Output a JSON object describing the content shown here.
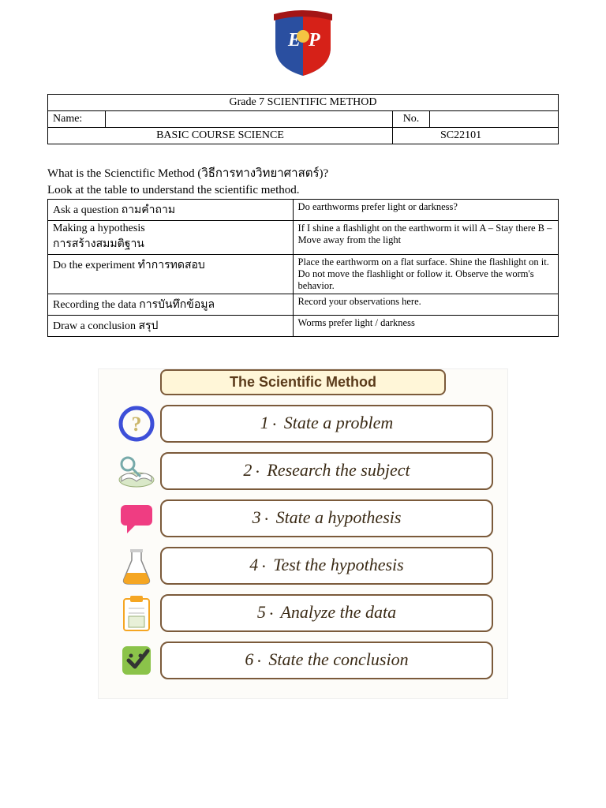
{
  "header": {
    "title": "Grade 7 SCIENTIFIC METHOD",
    "name_label": "Name:",
    "no_label": "No.",
    "course": "BASIC  COURSE    SCIENCE",
    "code": "SC22101"
  },
  "intro": {
    "line1": "What is the Scienctific Method (วิธีการทางวิทยาศาสตร์)?",
    "line2": "Look at the table to understand the scientific method."
  },
  "method_rows": [
    {
      "left": "Ask a question  ถามคำถาม",
      "right": "Do earthworms prefer light or darkness?"
    },
    {
      "left": "Making a hypothesis\nการสร้างสมมติฐาน",
      "right": "If I shine a ﬂashlight on the earthworm it will A – Stay there B – Move away from the light"
    },
    {
      "left": "Do the experiment ทำการทดสอบ",
      "right": "Place the earthworm on a flat surface. Shine the flashlight on it. Do not move the flashlight or follow it. Observe the worm's behavior."
    },
    {
      "left": "Recording the data การบันทึกข้อมูล",
      "right": "Record your observations here."
    },
    {
      "left": "Draw a conclusion  สรุป",
      "right": "Worms prefer light / darkness"
    }
  ],
  "infographic": {
    "title": "The Scientific Method",
    "steps": [
      {
        "num": "1",
        "text": "State a problem",
        "icon": "question"
      },
      {
        "num": "2",
        "text": "Research the subject",
        "icon": "book"
      },
      {
        "num": "3",
        "text": "State a hypothesis",
        "icon": "speech"
      },
      {
        "num": "4",
        "text": "Test the hypothesis",
        "icon": "flask"
      },
      {
        "num": "5",
        "text": "Analyze the data",
        "icon": "clipboard"
      },
      {
        "num": "6",
        "text": "State the conclusion",
        "icon": "check"
      }
    ]
  },
  "colors": {
    "shield_blue": "#2a4fa0",
    "shield_red": "#d62118",
    "banner": "#a31515",
    "info_border": "#7b5a3a",
    "info_title_bg": "#fff6d8",
    "speech_pink": "#ef3d82",
    "flask_orange": "#f5a623",
    "check_green": "#8bc34a",
    "clipboard_orange": "#f5a623",
    "question_blue": "#3d4fd8",
    "question_fill": "#cbb66a"
  }
}
